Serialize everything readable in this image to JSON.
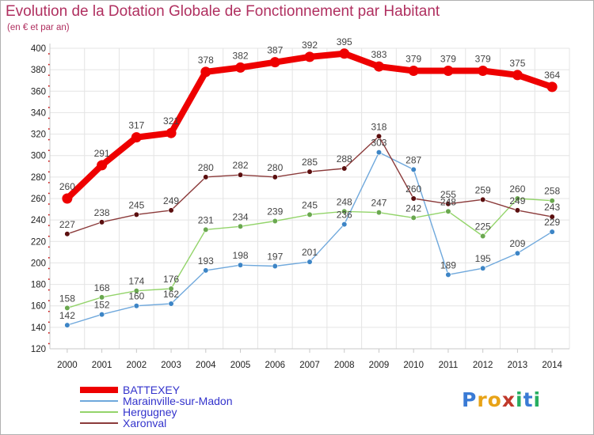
{
  "header": {
    "title": "Evolution de la Dotation Globale de Fonctionnement par Habitant",
    "subtitle": "(en € et par an)"
  },
  "logo": {
    "letters": [
      "P",
      "r",
      "o",
      "x",
      "i",
      "t",
      "i"
    ],
    "colors": [
      "#3a7bd5",
      "#e8a317",
      "#e8a317",
      "#c0392b",
      "#27ae60",
      "#3a7bd5",
      "#27ae60"
    ]
  },
  "chart_data": {
    "type": "line",
    "title": "Evolution de la Dotation Globale de Fonctionnement par Habitant",
    "subtitle": "(en € et par an)",
    "xlabel": "",
    "ylabel": "",
    "x": [
      "2000",
      "2001",
      "2002",
      "2003",
      "2004",
      "2005",
      "2006",
      "2007",
      "2008",
      "2009",
      "2010",
      "2011",
      "2012",
      "2013",
      "2014"
    ],
    "ylim": [
      120,
      400
    ],
    "yticks": [
      120,
      140,
      160,
      180,
      200,
      220,
      240,
      260,
      280,
      300,
      320,
      340,
      360,
      380,
      400
    ],
    "grid": true,
    "legend_position": "bottom-left",
    "series": [
      {
        "name": "BATTEXEY",
        "color": "#ee0000",
        "style": "thick",
        "values": [
          260,
          291,
          317,
          321,
          378,
          382,
          387,
          392,
          395,
          383,
          379,
          379,
          379,
          375,
          364
        ]
      },
      {
        "name": "Marainville-sur-Madon",
        "color": "#6fa8dc",
        "marker": "#3d85c6",
        "style": "thin",
        "values": [
          142,
          152,
          160,
          162,
          193,
          198,
          197,
          201,
          236,
          303,
          287,
          189,
          195,
          209,
          229
        ]
      },
      {
        "name": "Hergugney",
        "color": "#93d46a",
        "marker": "#6aa84f",
        "style": "thin",
        "values": [
          158,
          168,
          174,
          176,
          231,
          234,
          239,
          245,
          248,
          247,
          242,
          248,
          225,
          260,
          258
        ]
      },
      {
        "name": "Xaronval",
        "color": "#8b3a3a",
        "marker": "#5b0f0f",
        "style": "thin",
        "values": [
          227,
          238,
          245,
          249,
          280,
          282,
          280,
          285,
          288,
          318,
          260,
          255,
          259,
          249,
          243
        ]
      }
    ]
  }
}
